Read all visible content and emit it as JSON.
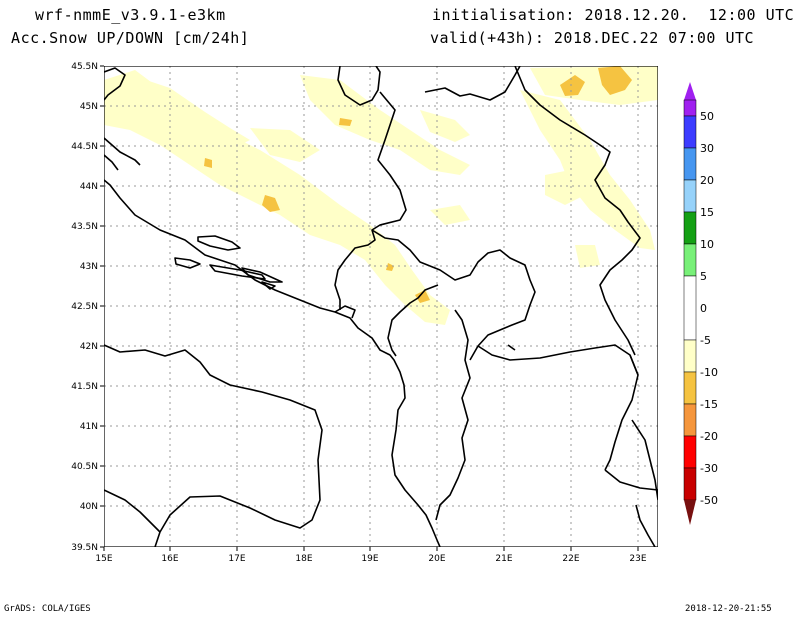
{
  "header": {
    "model": "wrf-nmmE_v3.9.1-e3km",
    "field": "n Acc.Snow UP/DOWN [cm/24h]",
    "init": "initialisation: 2018.12.20.  12:00 UTC",
    "valid": "valid(+43h): 2018.DEC.22 07:00 UTC"
  },
  "footer": {
    "credit": "GrADS: COLA/IGES",
    "timestamp": "2018-12-20-21:55"
  },
  "map": {
    "lat_ticks": [
      "45.5N",
      "45N",
      "44.5N",
      "44N",
      "43.5N",
      "43N",
      "42.5N",
      "42N",
      "41.5N",
      "41N",
      "40.5N",
      "40N",
      "39.5N"
    ],
    "lon_ticks": [
      "15E",
      "16E",
      "17E",
      "18E",
      "19E",
      "20E",
      "21E",
      "22E",
      "23E"
    ]
  },
  "colorbar": {
    "labels": [
      "50",
      "30",
      "20",
      "15",
      "10",
      "5",
      "0",
      "-5",
      "-10",
      "-15",
      "-20",
      "-30",
      "-50"
    ],
    "colors": [
      "#a020f0",
      "#3c3cff",
      "#4696f0",
      "#96d2fa",
      "#14a014",
      "#78f078",
      "#ffffff",
      "#ffffc8",
      "#f5c341",
      "#f5963c",
      "#ff0000",
      "#c80000",
      "#781010"
    ]
  },
  "palette": {
    "light_snow": "#ffffc8",
    "moderate_snow": "#f5c341"
  }
}
